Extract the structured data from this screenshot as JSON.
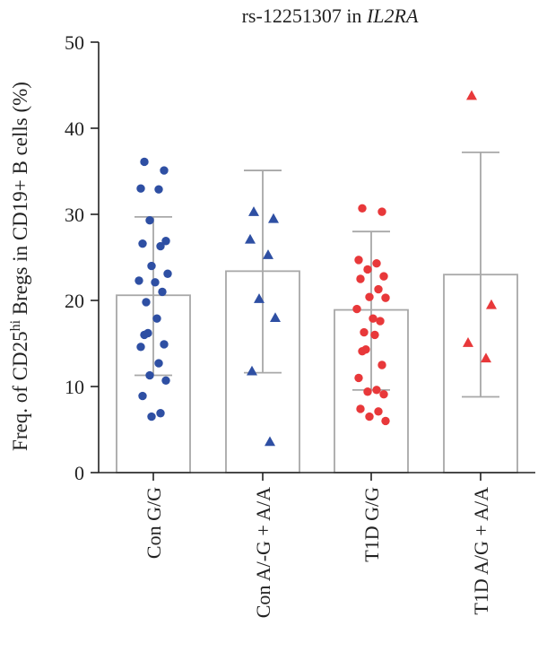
{
  "chart_data": {
    "type": "bar",
    "title": "rs-12251307 in IL2RA",
    "title_prefix": "rs-12251307 in ",
    "title_gene": "IL2RA",
    "ylabel_prefix": "Freq. of CD25",
    "ylabel_sup": "hi",
    "ylabel_suffix": " Bregs in CD19+ B cells (%)",
    "ylim": [
      0,
      50
    ],
    "yticks": [
      0,
      10,
      20,
      30,
      40,
      50
    ],
    "ytick_labels": [
      "0",
      "10",
      "20",
      "30",
      "40",
      "50"
    ],
    "categories": [
      "Con G/G",
      "Con A/-G + A/A",
      "T1D G/G",
      "T1D A/G + A/A"
    ],
    "bars": [
      {
        "mean": 20.6,
        "sd_low": 11.3,
        "sd_high": 29.7
      },
      {
        "mean": 23.4,
        "sd_low": 11.6,
        "sd_high": 35.1
      },
      {
        "mean": 18.9,
        "sd_low": 9.6,
        "sd_high": 28.0
      },
      {
        "mean": 23.0,
        "sd_low": 8.8,
        "sd_high": 37.2
      }
    ],
    "points": [
      {
        "marker": "circle",
        "color": "#2e4fa3",
        "values": [
          36.1,
          35.1,
          33.0,
          32.9,
          29.3,
          26.9,
          26.6,
          26.3,
          24.0,
          23.1,
          22.3,
          22.1,
          21.0,
          19.8,
          17.9,
          16.2,
          16.0,
          14.9,
          14.6,
          12.7,
          11.3,
          10.7,
          8.9,
          6.9,
          6.5
        ]
      },
      {
        "marker": "triangle",
        "color": "#2e4fa3",
        "values": [
          30.3,
          29.5,
          27.1,
          25.3,
          20.2,
          18.0,
          11.8,
          3.6
        ]
      },
      {
        "marker": "circle",
        "color": "#e8383a",
        "values": [
          30.7,
          30.3,
          24.7,
          24.3,
          23.6,
          22.8,
          22.5,
          21.3,
          20.4,
          20.3,
          19.0,
          17.9,
          17.6,
          16.3,
          16.0,
          14.3,
          14.1,
          12.5,
          11.0,
          9.6,
          9.4,
          9.1,
          7.4,
          7.1,
          6.5,
          6.0
        ]
      },
      {
        "marker": "triangle",
        "color": "#e8383a",
        "values": [
          43.8,
          19.5,
          15.1,
          13.3
        ]
      }
    ]
  }
}
